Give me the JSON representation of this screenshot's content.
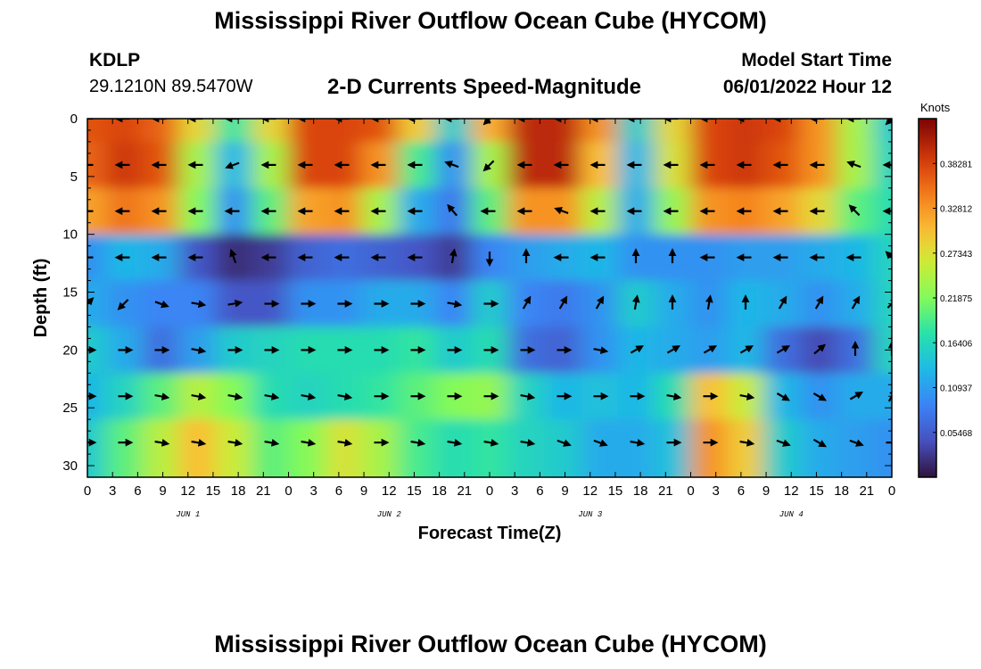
{
  "title": "Mississippi River Outflow Ocean Cube (HYCOM)",
  "title_repeat": "Mississippi River Outflow Ocean Cube (HYCOM)",
  "station": "KDLP",
  "coords": "29.1210N  89.5470W",
  "subtitle": "2-D Currents Speed-Magnitude",
  "model_label": "Model Start Time",
  "model_time": "06/01/2022 Hour 12",
  "chart_data": {
    "type": "heatmap",
    "title": "2-D Currents Speed-Magnitude",
    "xlabel": "Forecast Time(Z)",
    "ylabel": "Depth (ft)",
    "x_range_hours": [
      0,
      96
    ],
    "x_tick_labels": [
      "0",
      "3",
      "6",
      "9",
      "12",
      "15",
      "18",
      "21",
      "0",
      "3",
      "6",
      "9",
      "12",
      "15",
      "18",
      "21",
      "0",
      "3",
      "6",
      "9",
      "12",
      "15",
      "18",
      "21",
      "0",
      "3",
      "6",
      "9",
      "12",
      "15",
      "18",
      "21",
      "0"
    ],
    "day_labels": [
      "JUN 1",
      "JUN 2",
      "JUN 3",
      "JUN 4"
    ],
    "y_range": [
      0,
      31
    ],
    "y_ticks": [
      0,
      5,
      10,
      15,
      20,
      25,
      30
    ],
    "colorbar": {
      "title": "Knots",
      "range": [
        0.0,
        0.4375
      ],
      "tick_labels": [
        "0.05468",
        "0.10937",
        "0.16406",
        "0.21875",
        "0.27343",
        "0.32812",
        "0.38281"
      ],
      "tick_values": [
        0.05468,
        0.10937,
        0.16406,
        0.21875,
        0.27343,
        0.32812,
        0.38281
      ]
    },
    "depth_rows": [
      0,
      4,
      8,
      12,
      16,
      20,
      24,
      28
    ],
    "speed_knots": [
      [
        0.37,
        0.38,
        0.36,
        0.28,
        0.18,
        0.28,
        0.38,
        0.38,
        0.37,
        0.29,
        0.15,
        0.31,
        0.4,
        0.4,
        0.33,
        0.15,
        0.28,
        0.38,
        0.39,
        0.38,
        0.33,
        0.24,
        0.15
      ],
      [
        0.36,
        0.39,
        0.37,
        0.24,
        0.13,
        0.24,
        0.38,
        0.38,
        0.33,
        0.19,
        0.1,
        0.24,
        0.4,
        0.4,
        0.3,
        0.13,
        0.27,
        0.38,
        0.39,
        0.37,
        0.33,
        0.24,
        0.16
      ],
      [
        0.32,
        0.35,
        0.33,
        0.22,
        0.1,
        0.2,
        0.32,
        0.33,
        0.24,
        0.12,
        0.08,
        0.2,
        0.33,
        0.33,
        0.25,
        0.12,
        0.23,
        0.33,
        0.34,
        0.32,
        0.28,
        0.2,
        0.17
      ],
      [
        0.1,
        0.13,
        0.12,
        0.05,
        0.02,
        0.03,
        0.06,
        0.07,
        0.06,
        0.05,
        0.03,
        0.09,
        0.11,
        0.12,
        0.13,
        0.1,
        0.1,
        0.1,
        0.11,
        0.11,
        0.12,
        0.13,
        0.16
      ],
      [
        0.12,
        0.1,
        0.09,
        0.09,
        0.05,
        0.05,
        0.1,
        0.1,
        0.12,
        0.12,
        0.09,
        0.15,
        0.09,
        0.08,
        0.1,
        0.15,
        0.12,
        0.1,
        0.13,
        0.12,
        0.1,
        0.12,
        0.16
      ],
      [
        0.15,
        0.12,
        0.07,
        0.11,
        0.15,
        0.16,
        0.17,
        0.17,
        0.17,
        0.18,
        0.15,
        0.17,
        0.07,
        0.06,
        0.1,
        0.13,
        0.12,
        0.11,
        0.13,
        0.07,
        0.04,
        0.07,
        0.16
      ],
      [
        0.13,
        0.16,
        0.2,
        0.25,
        0.22,
        0.17,
        0.16,
        0.17,
        0.18,
        0.2,
        0.22,
        0.23,
        0.16,
        0.13,
        0.14,
        0.13,
        0.17,
        0.3,
        0.26,
        0.13,
        0.1,
        0.12,
        0.12
      ],
      [
        0.15,
        0.2,
        0.25,
        0.3,
        0.26,
        0.2,
        0.22,
        0.27,
        0.24,
        0.19,
        0.17,
        0.18,
        0.16,
        0.15,
        0.12,
        0.12,
        0.14,
        0.33,
        0.29,
        0.15,
        0.12,
        0.11,
        0.1
      ]
    ],
    "vector_directions_deg": [
      [
        180,
        180,
        180,
        180,
        180,
        180,
        180,
        180,
        180,
        180,
        180,
        225,
        180,
        180,
        180,
        180,
        180,
        180,
        180,
        180,
        180,
        180,
        225
      ],
      [
        180,
        180,
        180,
        180,
        200,
        180,
        180,
        180,
        180,
        180,
        160,
        225,
        180,
        180,
        180,
        180,
        180,
        180,
        180,
        180,
        180,
        160,
        180
      ],
      [
        180,
        180,
        180,
        180,
        180,
        180,
        180,
        180,
        180,
        180,
        130,
        180,
        180,
        160,
        180,
        180,
        180,
        180,
        180,
        180,
        180,
        135,
        180
      ],
      [
        180,
        180,
        180,
        180,
        110,
        180,
        180,
        180,
        180,
        180,
        80,
        -90,
        90,
        180,
        180,
        90,
        90,
        180,
        180,
        180,
        180,
        180,
        135
      ],
      [
        45,
        -135,
        -20,
        -10,
        10,
        0,
        0,
        0,
        0,
        0,
        -10,
        0,
        60,
        60,
        60,
        80,
        90,
        80,
        90,
        60,
        60,
        60,
        45
      ],
      [
        0,
        0,
        0,
        -10,
        0,
        0,
        0,
        0,
        0,
        0,
        0,
        0,
        0,
        0,
        -10,
        30,
        30,
        30,
        30,
        30,
        40,
        90,
        90
      ],
      [
        0,
        0,
        -10,
        -10,
        -10,
        -10,
        -10,
        -10,
        0,
        0,
        0,
        0,
        -10,
        0,
        0,
        0,
        -10,
        0,
        -10,
        -30,
        -30,
        30,
        60
      ],
      [
        0,
        0,
        -10,
        -10,
        -10,
        -10,
        -10,
        -10,
        0,
        -10,
        -10,
        -10,
        -10,
        -20,
        -20,
        -10,
        0,
        0,
        -10,
        -20,
        -30,
        -20,
        0
      ]
    ]
  }
}
